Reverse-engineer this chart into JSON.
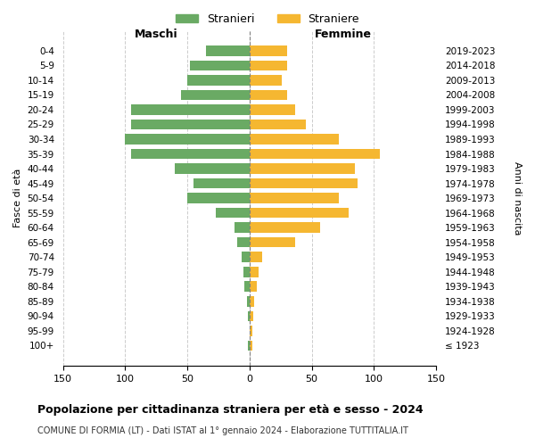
{
  "age_groups": [
    "100+",
    "95-99",
    "90-94",
    "85-89",
    "80-84",
    "75-79",
    "70-74",
    "65-69",
    "60-64",
    "55-59",
    "50-54",
    "45-49",
    "40-44",
    "35-39",
    "30-34",
    "25-29",
    "20-24",
    "15-19",
    "10-14",
    "5-9",
    "0-4"
  ],
  "birth_years": [
    "≤ 1923",
    "1924-1928",
    "1929-1933",
    "1934-1938",
    "1939-1943",
    "1944-1948",
    "1949-1953",
    "1954-1958",
    "1959-1963",
    "1964-1968",
    "1969-1973",
    "1974-1978",
    "1979-1983",
    "1984-1988",
    "1989-1993",
    "1994-1998",
    "1999-2003",
    "2004-2008",
    "2009-2013",
    "2014-2018",
    "2019-2023"
  ],
  "males": [
    1,
    0,
    1,
    2,
    4,
    5,
    6,
    10,
    12,
    27,
    50,
    45,
    60,
    95,
    100,
    95,
    95,
    55,
    50,
    48,
    35
  ],
  "females": [
    2,
    2,
    3,
    4,
    6,
    7,
    10,
    37,
    57,
    80,
    72,
    87,
    85,
    105,
    72,
    45,
    37,
    30,
    26,
    30,
    30
  ],
  "male_color": "#6aaa64",
  "female_color": "#f5b731",
  "background_color": "#ffffff",
  "grid_color": "#cccccc",
  "title": "Popolazione per cittadinanza straniera per età e sesso - 2024",
  "subtitle": "COMUNE DI FORMIA (LT) - Dati ISTAT al 1° gennaio 2024 - Elaborazione TUTTITALIA.IT",
  "xlabel_left": "Maschi",
  "xlabel_right": "Femmine",
  "ylabel_left": "Fasce di età",
  "ylabel_right": "Anni di nascita",
  "legend_stranieri": "Stranieri",
  "legend_straniere": "Straniere",
  "xlim": 150
}
